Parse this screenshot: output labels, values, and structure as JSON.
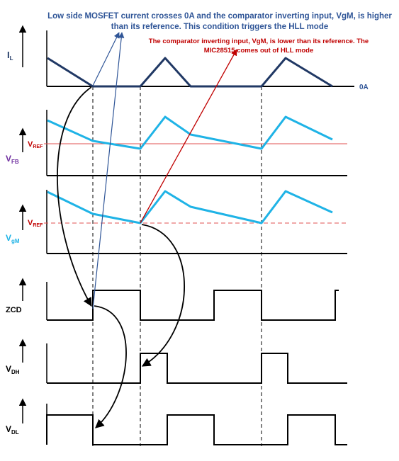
{
  "annotations": {
    "hll_enter": "Low side MOSFET current crosses 0A and the comparator inverting input, VgM, is higher than its reference. This condition triggers the HLL mode",
    "hll_exit": "The comparator inverting input, VgM, is lower than its reference. The MIC28515 comes out of HLL mode"
  },
  "signals": {
    "il": {
      "name": "I",
      "sub": "L",
      "zero_label": "0A"
    },
    "vfb": {
      "name": "V",
      "sub": "FB",
      "ref_name": "V",
      "ref_sub": "REF"
    },
    "vgm": {
      "name": "V",
      "sub": "gM",
      "ref_name": "V",
      "ref_sub": "REF"
    },
    "zcd": {
      "name": "ZCD"
    },
    "vdh": {
      "name": "V",
      "sub": "DH"
    },
    "vdl": {
      "name": "V",
      "sub": "DL"
    }
  },
  "colors": {
    "annotation_blue": "#2f5597",
    "annotation_red": "#c00000",
    "current_trace": "#203864",
    "voltage_trace": "#1fb3e6",
    "reference_line": "#e05050",
    "vfb_label": "#7030a0",
    "vgm_label": "#1fb3e6",
    "axes": "#000000"
  }
}
